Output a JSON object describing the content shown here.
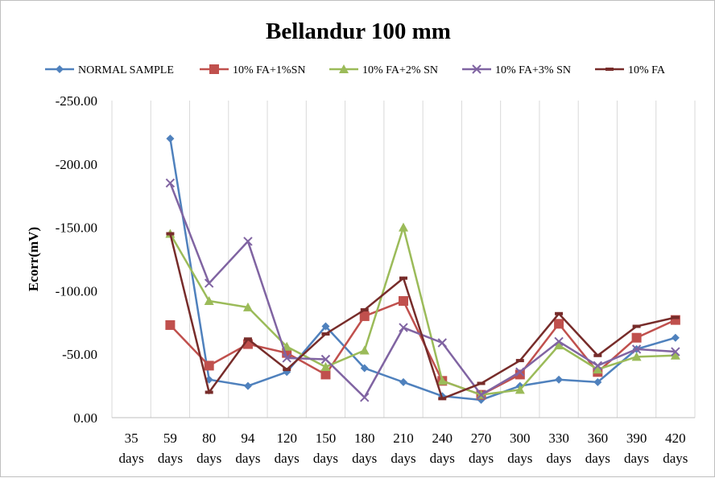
{
  "chart_data": {
    "type": "line",
    "title": "Bellandur 100 mm",
    "xlabel": "",
    "ylabel": "Ecorr(mV)",
    "ylim": [
      0,
      -250
    ],
    "y_inverted": true,
    "yticks": [
      "0.00",
      "-50.00",
      "-100.00",
      "-150.00",
      "-200.00",
      "-250.00"
    ],
    "ytick_values": [
      0,
      -50,
      -100,
      -150,
      -200,
      -250
    ],
    "grid": "vertical",
    "legend_position": "top",
    "categories": [
      [
        "35",
        "days"
      ],
      [
        "59",
        "days"
      ],
      [
        "80",
        "days"
      ],
      [
        "94",
        "days"
      ],
      [
        "120",
        "days"
      ],
      [
        "150",
        "days"
      ],
      [
        "180",
        "days"
      ],
      [
        "210",
        "days"
      ],
      [
        "240",
        "days"
      ],
      [
        "270",
        "days"
      ],
      [
        "300",
        "days"
      ],
      [
        "330",
        "days"
      ],
      [
        "360",
        "days"
      ],
      [
        "390",
        "days"
      ],
      [
        "420",
        "days"
      ]
    ],
    "series": [
      {
        "name": "NORMAL SAMPLE",
        "color": "#4f81bd",
        "marker": "diamond",
        "values": [
          null,
          -220,
          -30,
          -25,
          -36,
          -72,
          -39,
          -28,
          -17,
          -14,
          -25,
          -30,
          -28,
          -54,
          -63
        ]
      },
      {
        "name": "10% FA+1%SN",
        "color": "#c0504d",
        "marker": "square",
        "values": [
          null,
          -73,
          -41,
          -58,
          -51,
          -34,
          -80,
          -92,
          -29,
          -18,
          -34,
          -74,
          -36,
          -63,
          -77
        ]
      },
      {
        "name": "10% FA+2% SN",
        "color": "#9bbb59",
        "marker": "triangle",
        "values": [
          null,
          -145,
          -92,
          -87,
          -56,
          -40,
          -53,
          -150,
          -29,
          -18,
          -22,
          -57,
          -38,
          -48,
          -49
        ]
      },
      {
        "name": "10% FA+3% SN",
        "color": "#8064a2",
        "marker": "x",
        "values": [
          null,
          -185,
          -106,
          -139,
          -47,
          -46,
          -16,
          -71,
          -59,
          -18,
          -36,
          -60,
          -41,
          -54,
          -52
        ]
      },
      {
        "name": "10% FA",
        "color": "#772c2a",
        "marker": "dash",
        "values": [
          null,
          -145,
          -20,
          -62,
          -38,
          -66,
          -85,
          -110,
          -15,
          -27,
          -45,
          -82,
          -49,
          -72,
          -79
        ]
      }
    ]
  }
}
